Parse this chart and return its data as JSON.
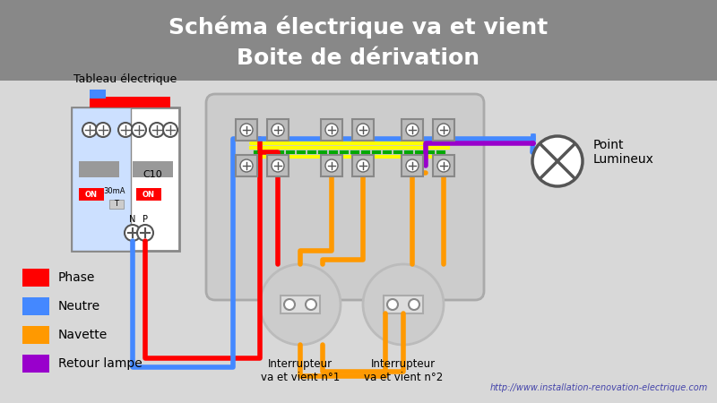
{
  "title_line1": "Schéma électrique va et vient",
  "title_line2": "Boite de dérivation",
  "title_bg": "#888888",
  "title_fg": "#ffffff",
  "bg_color": "#d8d8d8",
  "phase_color": "#ff0000",
  "neutre_color": "#4488ff",
  "navette_color": "#ff9900",
  "retour_color": "#9900cc",
  "yellow_color": "#ffff00",
  "green_color": "#00aa00",
  "wire_lw": 4,
  "legend_labels": [
    "Phase",
    "Neutre",
    "Navette",
    "Retour lampe"
  ],
  "legend_colors": [
    "#ff0000",
    "#4488ff",
    "#ff9900",
    "#9900cc"
  ],
  "switch1_label": "Interrupteur\nva et vient n°1",
  "switch2_label": "Interrupteur\nva et vient n°2",
  "tableau_label": "Tableau électrique",
  "point_label": "Point\nLumineux",
  "url": "http://www.installation-renovation-electrique.com"
}
